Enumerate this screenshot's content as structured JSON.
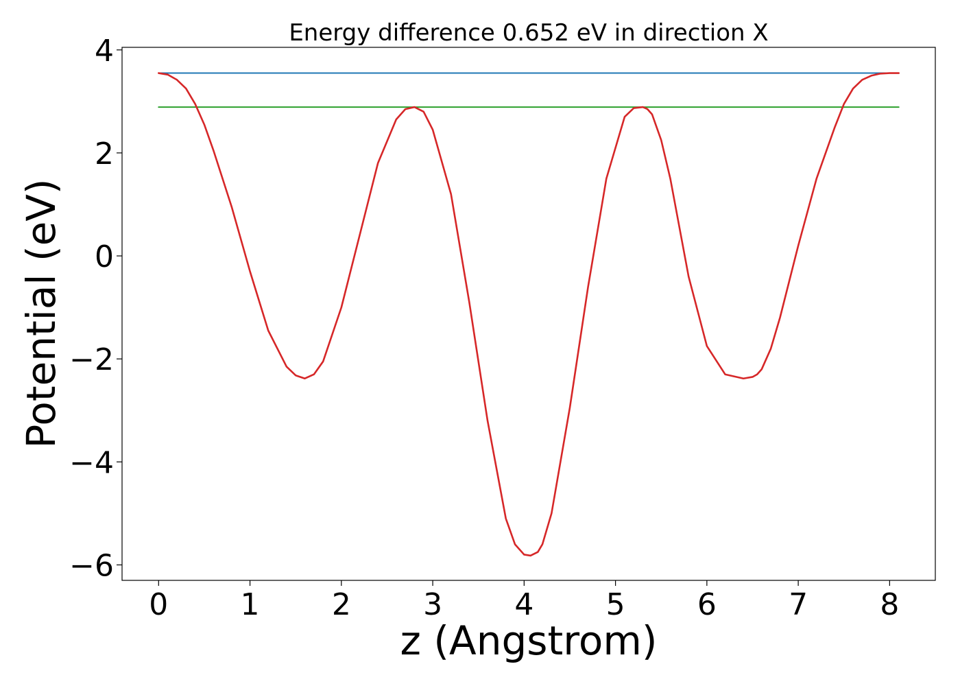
{
  "chart_data": {
    "type": "line",
    "title": "Energy difference 0.652 eV in direction X",
    "xlabel": "z (Angstrom)",
    "ylabel": "Potential (eV)",
    "xlim": [
      -0.4,
      8.5
    ],
    "ylim": [
      -6.3,
      4.05
    ],
    "xticks": [
      0,
      1,
      2,
      3,
      4,
      5,
      6,
      7,
      8
    ],
    "xtick_labels": [
      "0",
      "1",
      "2",
      "3",
      "4",
      "5",
      "6",
      "7",
      "8"
    ],
    "yticks": [
      -6,
      -4,
      -2,
      0,
      2,
      4
    ],
    "ytick_labels": [
      "−6",
      "−4",
      "−2",
      "0",
      "2",
      "4"
    ],
    "grid": false,
    "series": [
      {
        "color": "#1f77b4",
        "x": [
          0,
          8.1
        ],
        "y": [
          3.55,
          3.55
        ]
      },
      {
        "color": "#2ca02c",
        "x": [
          0,
          8.1
        ],
        "y": [
          2.89,
          2.89
        ]
      },
      {
        "color": "#d62728",
        "x": [
          0,
          0.1,
          0.2,
          0.3,
          0.4,
          0.5,
          0.6,
          0.8,
          1.0,
          1.2,
          1.4,
          1.5,
          1.6,
          1.7,
          1.8,
          2.0,
          2.2,
          2.4,
          2.6,
          2.7,
          2.8,
          2.9,
          3.0,
          3.2,
          3.4,
          3.6,
          3.8,
          3.9,
          4.0,
          4.07,
          4.15,
          4.2,
          4.3,
          4.5,
          4.7,
          4.9,
          5.1,
          5.2,
          5.3,
          5.35,
          5.4,
          5.5,
          5.6,
          5.8,
          6.0,
          6.2,
          6.4,
          6.5,
          6.55,
          6.6,
          6.7,
          6.8,
          7.0,
          7.2,
          7.4,
          7.5,
          7.6,
          7.7,
          7.8,
          7.9,
          8.0,
          8.1
        ],
        "y": [
          3.55,
          3.52,
          3.42,
          3.25,
          2.95,
          2.55,
          2.05,
          0.95,
          -0.3,
          -1.45,
          -2.15,
          -2.32,
          -2.38,
          -2.3,
          -2.05,
          -1.0,
          0.4,
          1.8,
          2.65,
          2.85,
          2.89,
          2.8,
          2.45,
          1.2,
          -0.9,
          -3.2,
          -5.1,
          -5.6,
          -5.8,
          -5.82,
          -5.75,
          -5.6,
          -5.0,
          -2.95,
          -0.6,
          1.5,
          2.7,
          2.87,
          2.89,
          2.85,
          2.75,
          2.25,
          1.5,
          -0.4,
          -1.75,
          -2.3,
          -2.38,
          -2.35,
          -2.3,
          -2.2,
          -1.8,
          -1.2,
          0.2,
          1.5,
          2.5,
          2.95,
          3.25,
          3.42,
          3.5,
          3.54,
          3.55,
          3.55
        ]
      }
    ]
  }
}
